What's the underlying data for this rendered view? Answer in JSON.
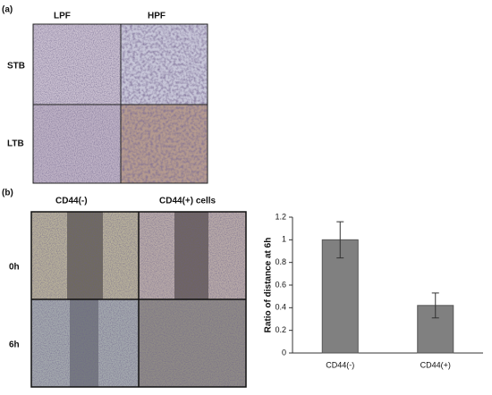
{
  "panel_a": {
    "label": "(a)",
    "columns": [
      "LPF",
      "HPF"
    ],
    "rows": [
      "STB",
      "LTB"
    ]
  },
  "panel_b": {
    "label": "(b)",
    "columns": [
      "CD44(-)",
      "CD44(+) cells"
    ],
    "rows": [
      "0h",
      "6h"
    ]
  },
  "chart_data": {
    "type": "bar",
    "y_label": "Ratio of distance at 6h",
    "categories": [
      "CD44(-)",
      "CD44(+)"
    ],
    "values": [
      1,
      0.42
    ],
    "errors": [
      0.16,
      0.11
    ],
    "color": "#808080",
    "ylim": [
      0,
      1.2
    ],
    "yticks": [
      0,
      0.2,
      0.4,
      0.6,
      0.8,
      1,
      1.2
    ]
  }
}
